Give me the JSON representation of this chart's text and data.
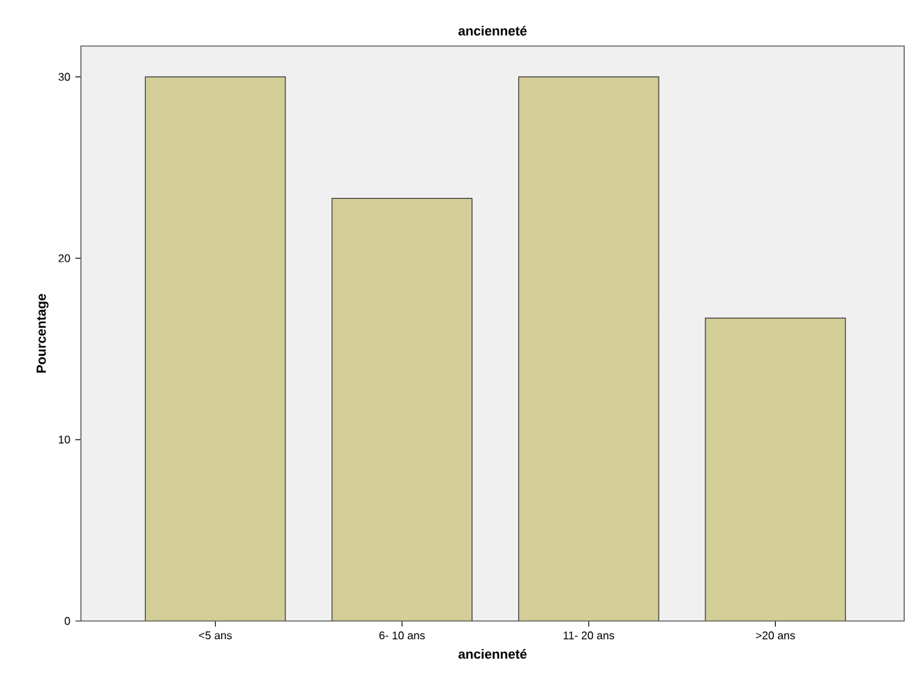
{
  "chart_data": {
    "type": "bar",
    "title": "ancienneté",
    "xlabel": "ancienneté",
    "ylabel": "Pourcentage",
    "categories": [
      "<5 ans",
      "6- 10 ans",
      "11- 20 ans",
      ">20 ans"
    ],
    "values": [
      30,
      23.3,
      30,
      16.7
    ],
    "color": "#d3ce97",
    "ylim": [
      0,
      31.7
    ],
    "yticks": [
      0,
      10,
      20,
      30
    ],
    "grid": false
  }
}
